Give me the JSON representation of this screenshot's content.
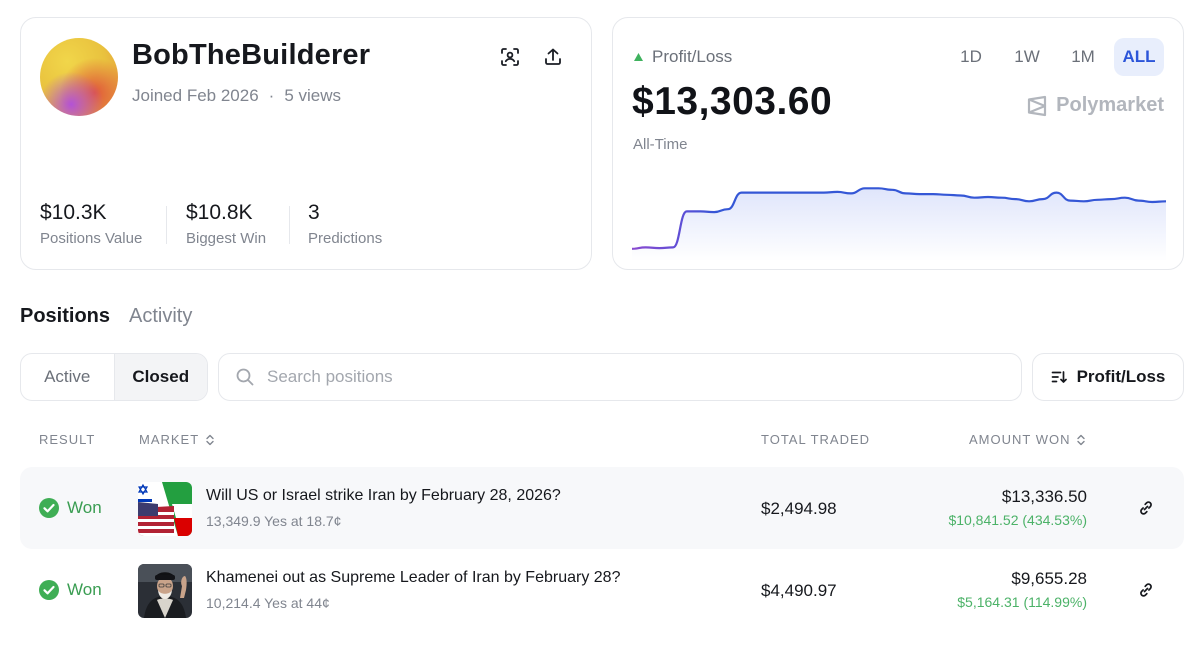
{
  "profile": {
    "username": "BobTheBuilderer",
    "joined": "Joined Feb 2026",
    "separator": "·",
    "views": "5 views",
    "stats": [
      {
        "value": "$10.3K",
        "label": "Positions Value"
      },
      {
        "value": "$10.8K",
        "label": "Biggest Win"
      },
      {
        "value": "3",
        "label": "Predictions"
      }
    ]
  },
  "pnl": {
    "label": "Profit/Loss",
    "value": "$13,303.60",
    "period_label": "All-Time",
    "ranges": [
      "1D",
      "1W",
      "1M",
      "ALL"
    ],
    "active_range": "ALL",
    "brand": "Polymarket",
    "colors": {
      "up": "#3fb25e",
      "line": "#3557d6",
      "line_start": "#8a4ad0",
      "fill": "#e3e8fb"
    },
    "series": [
      0.1,
      0.12,
      0.11,
      0.12,
      0.62,
      0.62,
      0.61,
      0.65,
      0.88,
      0.88,
      0.88,
      0.88,
      0.88,
      0.88,
      0.88,
      0.89,
      0.87,
      0.94,
      0.94,
      0.92,
      0.87,
      0.86,
      0.86,
      0.85,
      0.84,
      0.81,
      0.82,
      0.81,
      0.79,
      0.76,
      0.79,
      0.88,
      0.77,
      0.76,
      0.78,
      0.79,
      0.81,
      0.77,
      0.75,
      0.76
    ]
  },
  "tabs": {
    "positions": "Positions",
    "activity": "Activity"
  },
  "filters": {
    "active": "Active",
    "closed": "Closed"
  },
  "search": {
    "placeholder": "Search positions"
  },
  "sort": {
    "label": "Profit/Loss"
  },
  "table": {
    "headers": {
      "result": "RESULT",
      "market": "MARKET",
      "total_traded": "TOTAL TRADED",
      "amount_won": "AMOUNT WON"
    },
    "rows": [
      {
        "result": "Won",
        "thumbnail": "us-israel-iran-flags",
        "title": "Will US or Israel strike Iran by February 28, 2026?",
        "subtitle": "13,349.9 Yes at 18.7¢",
        "total_traded": "$2,494.98",
        "amount_won": "$13,336.50",
        "gain": "$10,841.52 (434.53%)"
      },
      {
        "result": "Won",
        "thumbnail": "khamenei-portrait",
        "title": "Khamenei out as Supreme Leader of Iran by February 28?",
        "subtitle": "10,214.4 Yes at 44¢",
        "total_traded": "$4,490.97",
        "amount_won": "$9,655.28",
        "gain": "$5,164.31 (114.99%)"
      }
    ]
  }
}
